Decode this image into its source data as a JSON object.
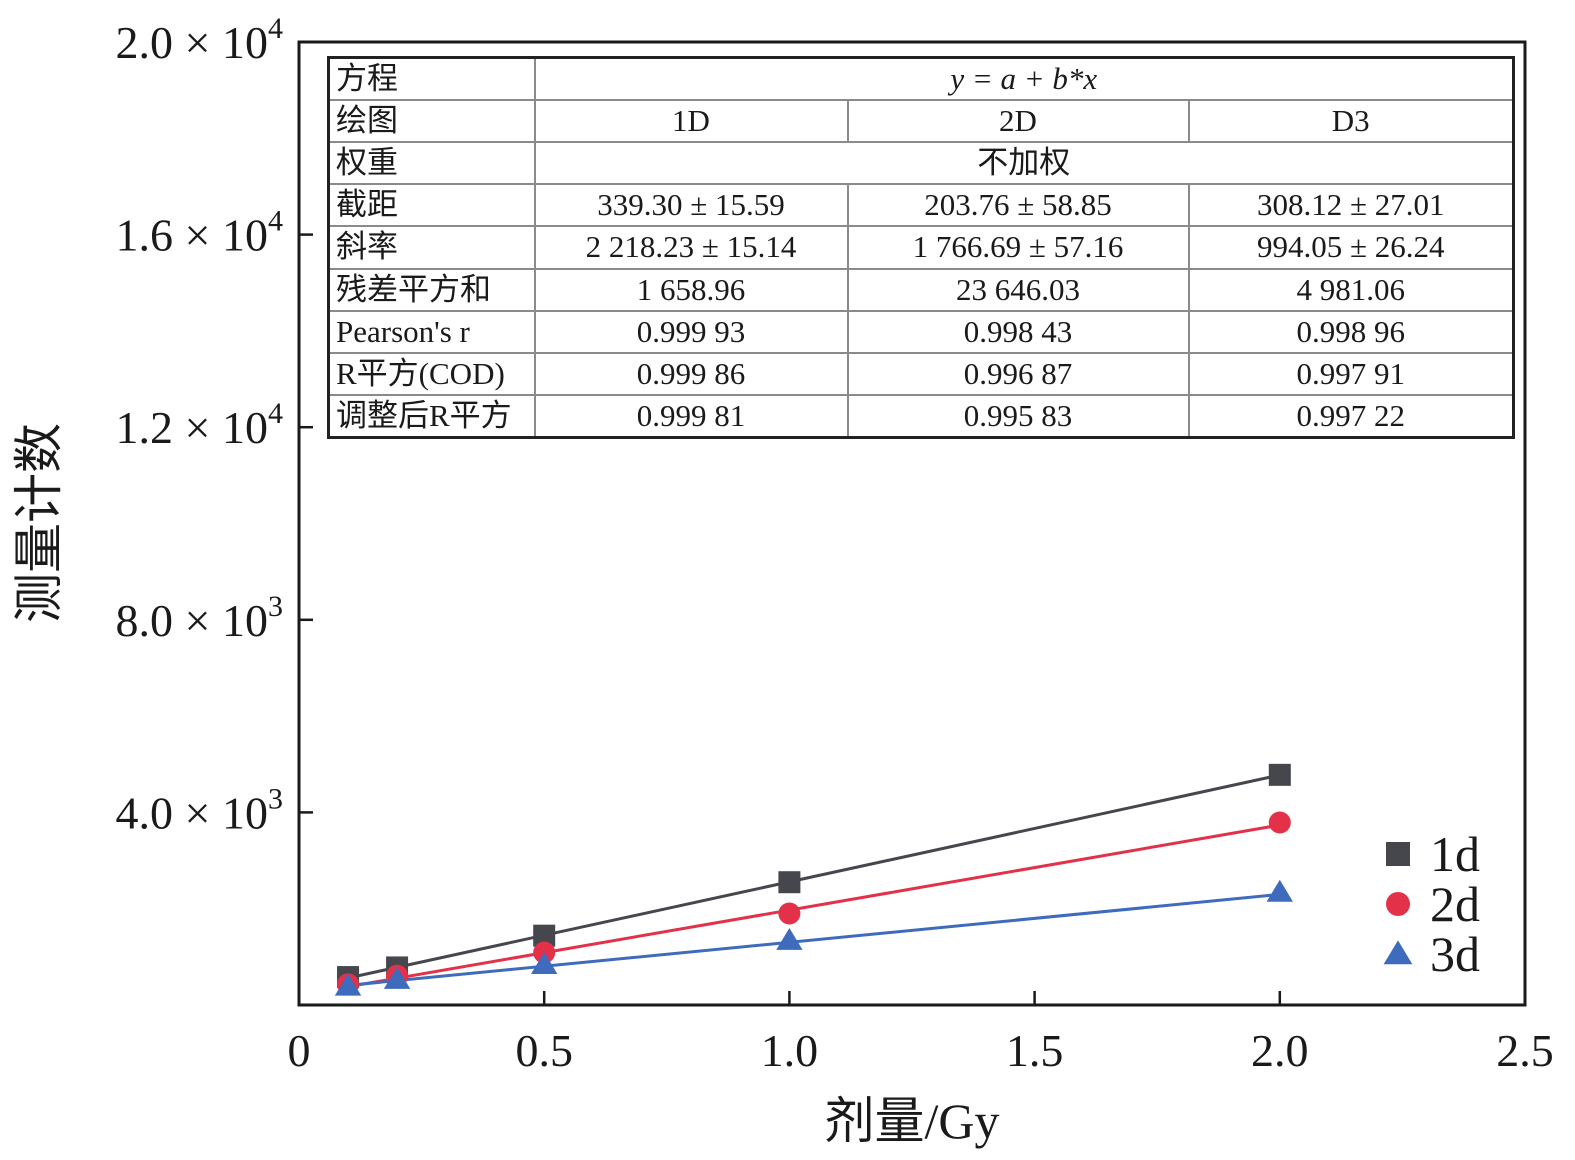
{
  "chart_data": {
    "type": "scatter",
    "xlabel": "剂量/Gy",
    "ylabel": "测量计数",
    "xlim": [
      0,
      2.5
    ],
    "ylim": [
      0,
      20000
    ],
    "x_ticks": [
      {
        "value": 0,
        "label": "0"
      },
      {
        "value": 0.5,
        "label": "0.5"
      },
      {
        "value": 1.0,
        "label": "1.0"
      },
      {
        "value": 1.5,
        "label": "1.5"
      },
      {
        "value": 2.0,
        "label": "2.0"
      },
      {
        "value": 2.5,
        "label": "2.5"
      }
    ],
    "y_ticks": [
      {
        "value": 4000,
        "mantissa": "4.0 × 10",
        "exponent": "3"
      },
      {
        "value": 8000,
        "mantissa": "8.0 × 10",
        "exponent": "3"
      },
      {
        "value": 12000,
        "mantissa": "1.2 × 10",
        "exponent": "4"
      },
      {
        "value": 16000,
        "mantissa": "1.6 × 10",
        "exponent": "4"
      },
      {
        "value": 20000,
        "mantissa": "2.0 × 10",
        "exponent": "4"
      }
    ],
    "legend_position": "bottom-right",
    "series": [
      {
        "name": "1d",
        "marker": "square",
        "color": "#45474d",
        "x": [
          0.1,
          0.2,
          0.5,
          1.0,
          2.0
        ],
        "y": [
          580,
          780,
          1440,
          2550,
          4780
        ],
        "fit": {
          "intercept": 339.3,
          "slope": 2218.23
        }
      },
      {
        "name": "2d",
        "marker": "circle",
        "color": "#e23148",
        "x": [
          0.1,
          0.2,
          0.5,
          1.0,
          2.0
        ],
        "y": [
          430,
          610,
          1090,
          1900,
          3790
        ],
        "fit": {
          "intercept": 203.76,
          "slope": 1766.69
        }
      },
      {
        "name": "3d",
        "marker": "triangle",
        "color": "#3f6bbd",
        "x": [
          0.1,
          0.2,
          0.5,
          1.0,
          2.0
        ],
        "y": [
          390,
          530,
          840,
          1340,
          2340
        ],
        "fit": {
          "intercept": 308.12,
          "slope": 994.05
        }
      }
    ]
  },
  "fit_table": {
    "equation_label": "方程",
    "equation": "y = a + b*x",
    "plot_label": "绘图",
    "plots": [
      "1D",
      "2D",
      "D3"
    ],
    "weight_label": "权重",
    "weight": "不加权",
    "rows": [
      {
        "label": "截距",
        "values": [
          "339.30 ± 15.59",
          "203.76 ± 58.85",
          "308.12 ± 27.01"
        ]
      },
      {
        "label": "斜率",
        "values": [
          "2 218.23 ± 15.14",
          "1 766.69 ± 57.16",
          "994.05 ± 26.24"
        ]
      },
      {
        "label": "残差平方和",
        "values": [
          "1 658.96",
          "23 646.03",
          "4 981.06"
        ]
      },
      {
        "label": "Pearson's r",
        "values": [
          "0.999 93",
          "0.998 43",
          "0.998 96"
        ]
      },
      {
        "label": "R平方(COD)",
        "values": [
          "0.999 86",
          "0.996 87",
          "0.997 91"
        ]
      },
      {
        "label": "调整后R平方",
        "values": [
          "0.999 81",
          "0.995 83",
          "0.997 22"
        ]
      }
    ]
  }
}
